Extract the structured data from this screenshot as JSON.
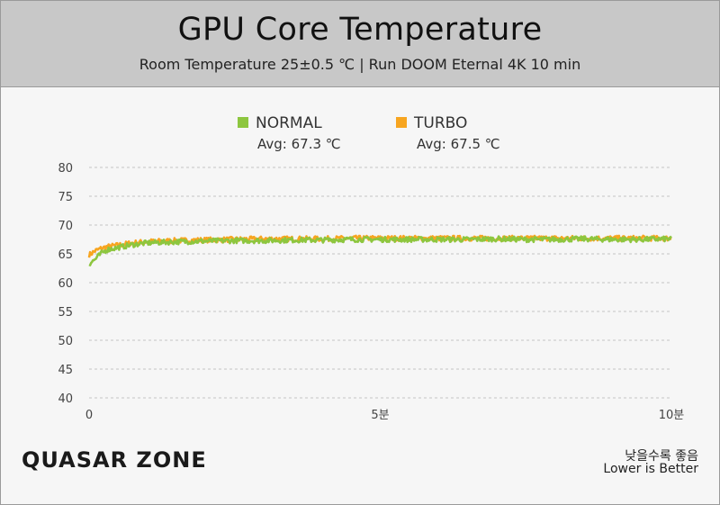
{
  "header": {
    "title": "GPU Core Temperature",
    "subtitle": "Room Temperature 25±0.5 ℃  |  Run DOOM Eternal 4K 10 min"
  },
  "legend": [
    {
      "name": "NORMAL",
      "avg": "Avg: 67.3 ℃",
      "color": "#8dc63f"
    },
    {
      "name": "TURBO",
      "avg": "Avg: 67.5 ℃",
      "color": "#f7a520"
    }
  ],
  "footer": {
    "brand": "QUASAR ZONE",
    "note_ko": "낮을수록 좋음",
    "note_en": "Lower is Better"
  },
  "chart_data": {
    "type": "line",
    "title": "GPU Core Temperature",
    "subtitle": "Room Temperature 25±0.5 ℃  |  Run DOOM Eternal 4K 10 min",
    "ylim": [
      40,
      80
    ],
    "yticks": [
      "40",
      "45",
      "50",
      "55",
      "60",
      "65",
      "70",
      "75",
      "80"
    ],
    "xlim": [
      0,
      10
    ],
    "xticks": [
      {
        "value": 0,
        "label": "0"
      },
      {
        "value": 5,
        "label": "5분"
      },
      {
        "value": 10,
        "label": "10분"
      }
    ],
    "grid": true,
    "legend_position": "top-center",
    "series": [
      {
        "name": "NORMAL",
        "avg": 67.3,
        "color": "#8dc63f",
        "x": [
          0,
          0.1,
          0.2,
          0.3,
          0.5,
          0.75,
          1.0,
          1.5,
          2.0,
          2.5,
          3.0,
          3.5,
          4.0,
          4.5,
          5.0,
          5.5,
          6.0,
          6.5,
          7.0,
          7.5,
          8.0,
          8.5,
          9.0,
          9.5,
          10.0
        ],
        "y": [
          63.3,
          64.0,
          65.0,
          65.7,
          66.1,
          66.6,
          66.9,
          67.1,
          67.2,
          67.3,
          67.3,
          67.4,
          67.4,
          67.5,
          67.5,
          67.5,
          67.5,
          67.5,
          67.6,
          67.5,
          67.5,
          67.6,
          67.5,
          67.5,
          67.6
        ]
      },
      {
        "name": "TURBO",
        "avg": 67.5,
        "color": "#f7a520",
        "x": [
          0,
          0.1,
          0.2,
          0.3,
          0.5,
          0.75,
          1.0,
          1.5,
          2.0,
          2.5,
          3.0,
          3.5,
          4.0,
          4.5,
          5.0,
          5.5,
          6.0,
          6.5,
          7.0,
          7.5,
          8.0,
          8.5,
          9.0,
          9.5,
          10.0
        ],
        "y": [
          64.8,
          65.5,
          65.9,
          66.2,
          66.5,
          66.9,
          67.1,
          67.3,
          67.4,
          67.5,
          67.6,
          67.6,
          67.6,
          67.7,
          67.7,
          67.7,
          67.7,
          67.7,
          67.7,
          67.7,
          67.7,
          67.7,
          67.7,
          67.7,
          67.7
        ]
      }
    ]
  }
}
